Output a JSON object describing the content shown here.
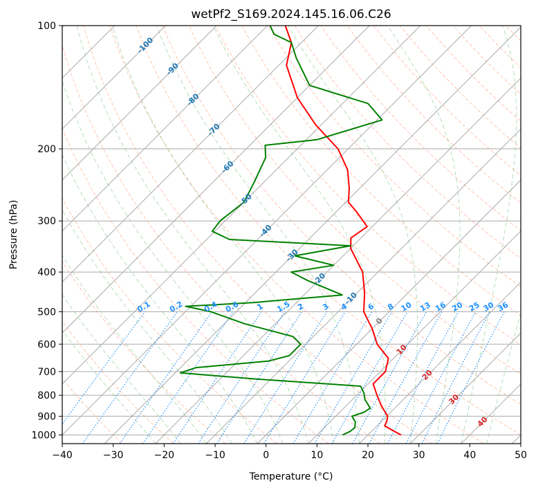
{
  "chart_data": {
    "type": "line",
    "title": "wetPf2_S169.2024.145.16.06.C26",
    "xlabel": "Temperature (°C)",
    "ylabel": "Pressure (hPa)",
    "xlim": [
      -40,
      50
    ],
    "ylim": [
      1050,
      100
    ],
    "y_scale": "log",
    "skew": true,
    "grid": true,
    "x_ticks": [
      -40,
      -30,
      -20,
      -10,
      0,
      10,
      20,
      30,
      40,
      50
    ],
    "y_ticks": [
      100,
      200,
      300,
      400,
      500,
      600,
      700,
      800,
      900,
      1000
    ],
    "series": [
      {
        "color": "#ff0000",
        "points": [
          {
            "p": 1000,
            "t": 26.5
          },
          {
            "p": 975,
            "t": 24.0
          },
          {
            "p": 950,
            "t": 21.5
          },
          {
            "p": 925,
            "t": 21.0
          },
          {
            "p": 900,
            "t": 20.2
          },
          {
            "p": 850,
            "t": 17.0
          },
          {
            "p": 800,
            "t": 14.0
          },
          {
            "p": 750,
            "t": 11.0
          },
          {
            "p": 700,
            "t": 11.0
          },
          {
            "p": 650,
            "t": 9.0
          },
          {
            "p": 600,
            "t": 4.0
          },
          {
            "p": 550,
            "t": 0.0
          },
          {
            "p": 500,
            "t": -5.0
          },
          {
            "p": 450,
            "t": -8.5
          },
          {
            "p": 400,
            "t": -13.0
          },
          {
            "p": 350,
            "t": -20.0
          },
          {
            "p": 330,
            "t": -22.0
          },
          {
            "p": 310,
            "t": -21.0
          },
          {
            "p": 285,
            "t": -26.0
          },
          {
            "p": 270,
            "t": -29.5
          },
          {
            "p": 250,
            "t": -32.0
          },
          {
            "p": 225,
            "t": -36.0
          },
          {
            "p": 200,
            "t": -42.0
          },
          {
            "p": 175,
            "t": -51.0
          },
          {
            "p": 150,
            "t": -60.0
          },
          {
            "p": 125,
            "t": -68.5
          },
          {
            "p": 110,
            "t": -72.0
          },
          {
            "p": 100,
            "t": -76.5
          }
        ]
      },
      {
        "color": "#008000",
        "points": [
          {
            "p": 1000,
            "t": 15.0
          },
          {
            "p": 980,
            "t": 15.8
          },
          {
            "p": 960,
            "t": 16.0
          },
          {
            "p": 930,
            "t": 15.0
          },
          {
            "p": 900,
            "t": 13.2
          },
          {
            "p": 880,
            "t": 14.8
          },
          {
            "p": 860,
            "t": 15.2
          },
          {
            "p": 820,
            "t": 12.5
          },
          {
            "p": 790,
            "t": 11.0
          },
          {
            "p": 760,
            "t": 9.0
          },
          {
            "p": 730,
            "t": -13.0
          },
          {
            "p": 705,
            "t": -29.0
          },
          {
            "p": 685,
            "t": -27.0
          },
          {
            "p": 660,
            "t": -14.0
          },
          {
            "p": 640,
            "t": -11.0
          },
          {
            "p": 620,
            "t": -11.0
          },
          {
            "p": 600,
            "t": -11.0
          },
          {
            "p": 575,
            "t": -14.0
          },
          {
            "p": 535,
            "t": -26.0
          },
          {
            "p": 500,
            "t": -35.0
          },
          {
            "p": 485,
            "t": -41.0
          },
          {
            "p": 475,
            "t": -28.5
          },
          {
            "p": 455,
            "t": -12.5
          },
          {
            "p": 420,
            "t": -22.0
          },
          {
            "p": 400,
            "t": -27.0
          },
          {
            "p": 385,
            "t": -20.0
          },
          {
            "p": 365,
            "t": -29.5
          },
          {
            "p": 345,
            "t": -20.5
          },
          {
            "p": 333,
            "t": -45.5
          },
          {
            "p": 318,
            "t": -50.5
          },
          {
            "p": 300,
            "t": -51.0
          },
          {
            "p": 270,
            "t": -50.0
          },
          {
            "p": 240,
            "t": -52.0
          },
          {
            "p": 210,
            "t": -54.5
          },
          {
            "p": 196,
            "t": -57.0
          },
          {
            "p": 190,
            "t": -48.0
          },
          {
            "p": 170,
            "t": -39.0
          },
          {
            "p": 155,
            "t": -45.0
          },
          {
            "p": 140,
            "t": -60.0
          },
          {
            "p": 120,
            "t": -68.0
          },
          {
            "p": 110,
            "t": -72.0
          },
          {
            "p": 105,
            "t": -77.0
          },
          {
            "p": 100,
            "t": -79.5
          }
        ]
      }
    ],
    "isotherm_labels": [
      {
        "text": "-100",
        "p": 112
      },
      {
        "text": "-90",
        "p": 128
      },
      {
        "text": "-80",
        "p": 152
      },
      {
        "text": "-70",
        "p": 180
      },
      {
        "text": "-60",
        "p": 222
      },
      {
        "text": "-50",
        "p": 267
      },
      {
        "text": "-40",
        "p": 318
      },
      {
        "text": "-30",
        "p": 365
      },
      {
        "text": "-20",
        "p": 417
      },
      {
        "text": "-10",
        "p": 465
      },
      {
        "text": "0",
        "p": 528
      },
      {
        "text": "10",
        "p": 620
      },
      {
        "text": "20",
        "p": 715
      },
      {
        "text": "30",
        "p": 820
      },
      {
        "text": "40",
        "p": 930
      }
    ],
    "mixing_ratio_labels": [
      "0.1",
      "0.2",
      "0.4",
      "0.6",
      "1",
      "1.5",
      "2",
      "3",
      "4",
      "6",
      "8",
      "10",
      "13",
      "16",
      "20",
      "25",
      "30",
      "36"
    ],
    "colors": {
      "isotherm_label_cold": "#1f77b4",
      "isotherm_label_zero": "#808080",
      "isotherm_label_warm": "#d62728",
      "mixing_ratio": "#1e90ff",
      "dry_adiabat": "#ff7f50",
      "moist_adiabat": "#2ca02c",
      "grid": "#aaaaaa"
    }
  }
}
